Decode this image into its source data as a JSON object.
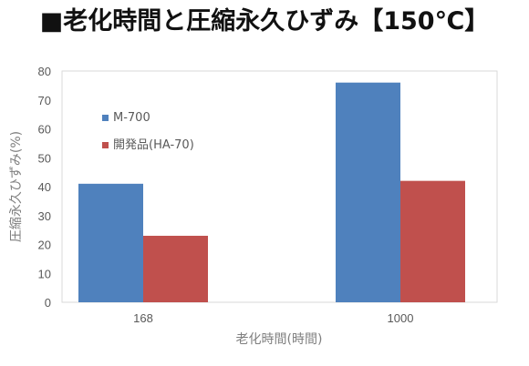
{
  "title": "■老化時間と圧縮永久ひずみ【150℃】",
  "chart_data": {
    "type": "bar",
    "categories": [
      "168",
      "1000"
    ],
    "series": [
      {
        "name": "M-700",
        "values": [
          41,
          76
        ],
        "color": "#4f81bd"
      },
      {
        "name": "開発品(HA-70)",
        "values": [
          23,
          42
        ],
        "color": "#c0504d"
      }
    ],
    "xlabel": "老化時間(時間)",
    "ylabel": "圧縮永久ひずみ(%)",
    "ylim": [
      0,
      80
    ],
    "yticks": [
      0,
      10,
      20,
      30,
      40,
      50,
      60,
      70,
      80
    ],
    "grid": false,
    "legend_position": "top-left"
  }
}
